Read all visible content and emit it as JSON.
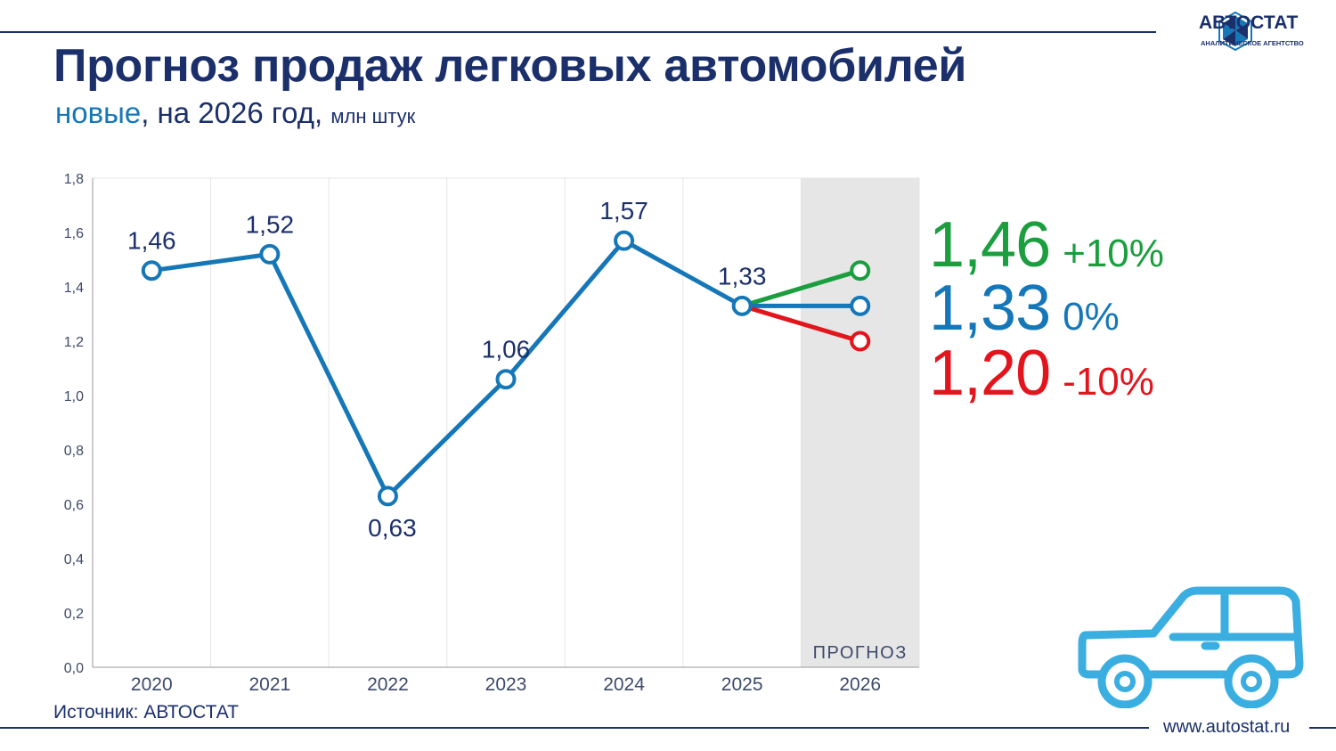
{
  "header": {
    "title": "Прогноз продаж легковых автомобилей",
    "subtitle_highlight": "новые",
    "subtitle_main": ", на 2026 год,",
    "subtitle_unit": "млн штук"
  },
  "logo": {
    "name": "АВТОСТАТ",
    "tagline": "АНАЛИТИЧЕСКОЕ АГЕНТСТВО"
  },
  "footer": {
    "source": "Источник: АВТОСТАТ",
    "url": "www.autostat.ru"
  },
  "forecast_band_label": "ПРОГНОЗ",
  "scenarios": [
    {
      "value": "1,46",
      "change": "+10%",
      "color": "#1a9e3e"
    },
    {
      "value": "1,33",
      "change": "0%",
      "color": "#1577b8"
    },
    {
      "value": "1,20",
      "change": "-10%",
      "color": "#e2151d"
    }
  ],
  "colors": {
    "primary": "#1b2f6b",
    "line": "#1577b8",
    "up": "#1a9e3e",
    "down": "#e2151d",
    "forecast_band": "#e6e6e6"
  },
  "chart_data": {
    "type": "line",
    "categories": [
      "2020",
      "2021",
      "2022",
      "2023",
      "2024",
      "2025",
      "2026"
    ],
    "series": [
      {
        "values": [
          1.46,
          1.52,
          0.63,
          1.06,
          1.57,
          1.33,
          null
        ],
        "labels": [
          "1,46",
          "1,52",
          "0,63",
          "1,06",
          "1,57",
          "1,33",
          null
        ]
      }
    ],
    "forecast": [
      {
        "from": "2025",
        "to": "2026",
        "values": [
          1.33,
          1.46
        ],
        "color": "#1a9e3e"
      },
      {
        "from": "2025",
        "to": "2026",
        "values": [
          1.33,
          1.33
        ],
        "color": "#1577b8"
      },
      {
        "from": "2025",
        "to": "2026",
        "values": [
          1.33,
          1.2
        ],
        "color": "#e2151d"
      }
    ],
    "ylim": [
      0,
      1.8
    ],
    "yticks": [
      "0,0",
      "0,2",
      "0,4",
      "0,6",
      "0,8",
      "1,0",
      "1,2",
      "1,4",
      "1,6",
      "1,8"
    ],
    "grid": true,
    "forecast_region": "2026"
  }
}
